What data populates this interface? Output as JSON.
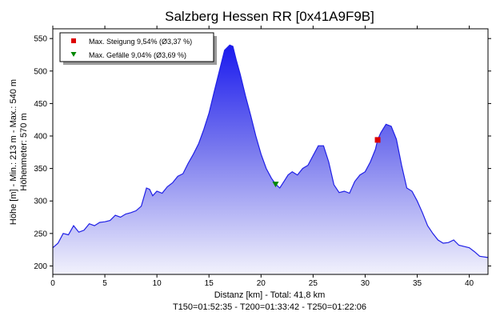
{
  "chart_data": {
    "type": "area",
    "title": "Salzberg Hessen RR [0x41A9F9B]",
    "xlabel": "Distanz [km] - Total: 41,8 km",
    "xlabel2": "T150=01:52:35 - T200=01:33:42 - T250=01:22:06",
    "ylabel": "Höhe [m] - Min.: 213 m - Max.: 540 m",
    "ylabel2": "Höhenmeter: 570 m",
    "xlim": [
      0,
      41.8
    ],
    "ylim": [
      187,
      565
    ],
    "xticks": [
      "0",
      "5",
      "10",
      "15",
      "20",
      "25",
      "30",
      "35",
      "40"
    ],
    "yticks": [
      "200",
      "250",
      "300",
      "350",
      "400",
      "450",
      "500",
      "550"
    ],
    "grid": false,
    "legend_position": "top-left",
    "legend": [
      {
        "label": "Max. Steigung 9,54% (Ø3,37 %)",
        "marker": "square",
        "color": "#dd0000"
      },
      {
        "label": "Max. Gefälle 9,04% (Ø3,69 %)",
        "marker": "triangle-down",
        "color": "#008800"
      }
    ],
    "markers": [
      {
        "name": "max-climb",
        "x": 31.2,
        "y": 394,
        "color": "#dd0000"
      },
      {
        "name": "max-descent",
        "x": 21.4,
        "y": 326,
        "color": "#008800"
      }
    ],
    "series": [
      {
        "color": "#1f1fe6",
        "x": [
          0,
          0.5,
          1,
          1.5,
          2,
          2.5,
          3,
          3.5,
          4,
          4.5,
          5,
          5.5,
          6,
          6.5,
          7,
          7.5,
          8,
          8.5,
          9,
          9.3,
          9.6,
          10,
          10.5,
          11,
          11.5,
          12,
          12.5,
          13,
          13.5,
          14,
          14.5,
          15,
          15.5,
          16,
          16.5,
          17,
          17.3,
          17.6,
          18,
          18.5,
          19,
          19.5,
          20,
          20.5,
          21,
          21.4,
          21.8,
          22.2,
          22.6,
          23,
          23.5,
          24,
          24.5,
          25,
          25.5,
          26,
          26.5,
          27,
          27.5,
          28,
          28.5,
          29,
          29.5,
          30,
          30.5,
          31,
          31.2,
          31.5,
          32,
          32.5,
          33,
          33.5,
          34,
          34.5,
          35,
          35.5,
          36,
          36.5,
          37,
          37.5,
          38,
          38.5,
          39,
          39.5,
          40,
          40.5,
          41,
          41.8
        ],
        "y": [
          228,
          235,
          250,
          248,
          262,
          252,
          255,
          265,
          262,
          267,
          268,
          270,
          278,
          275,
          280,
          282,
          285,
          292,
          320,
          318,
          308,
          315,
          312,
          322,
          328,
          338,
          342,
          358,
          372,
          388,
          410,
          435,
          468,
          500,
          532,
          540,
          538,
          518,
          495,
          462,
          432,
          400,
          372,
          350,
          335,
          326,
          320,
          330,
          340,
          345,
          340,
          350,
          355,
          370,
          385,
          385,
          360,
          325,
          313,
          315,
          312,
          330,
          340,
          345,
          360,
          380,
          394,
          405,
          418,
          415,
          395,
          355,
          320,
          315,
          300,
          282,
          262,
          250,
          240,
          235,
          236,
          240,
          232,
          230,
          228,
          222,
          215,
          213
        ]
      }
    ]
  }
}
